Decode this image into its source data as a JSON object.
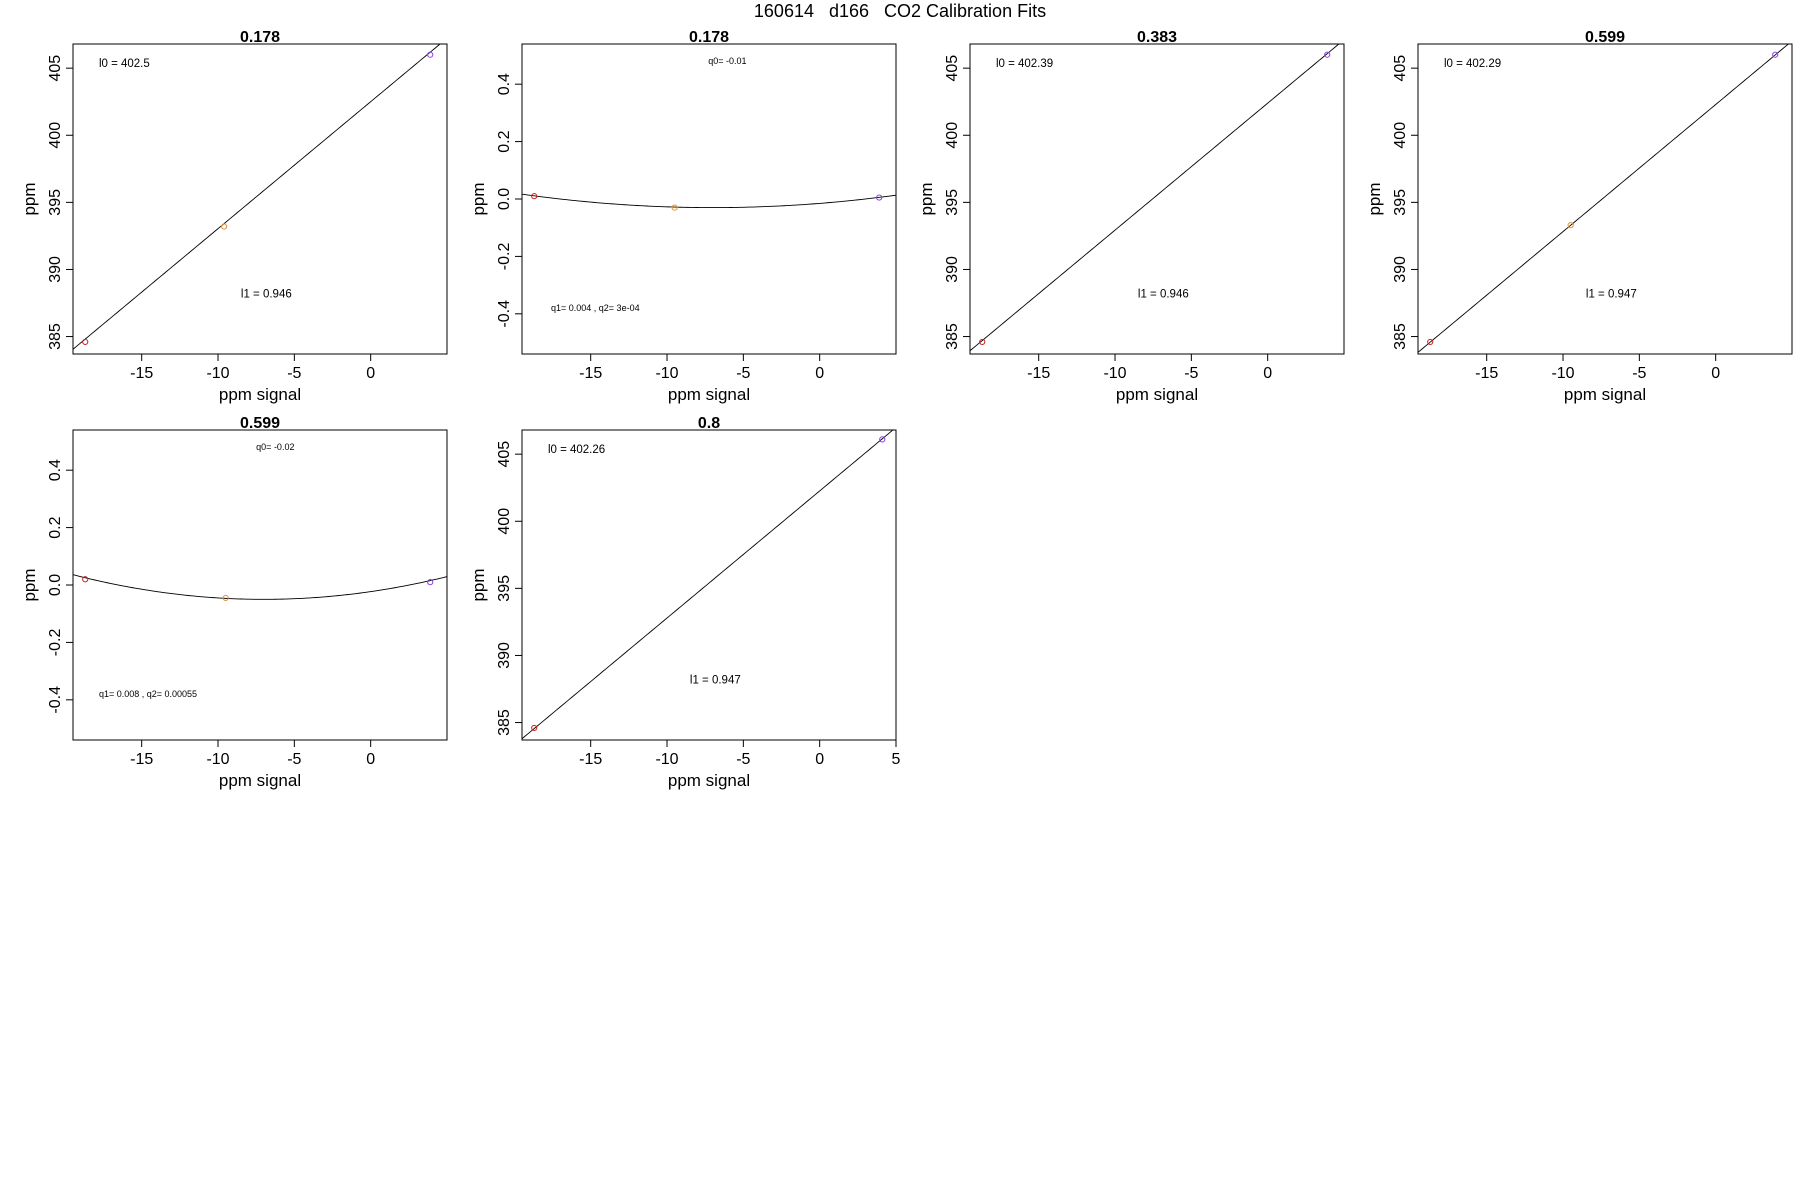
{
  "page_title": "160614   d166   CO2 Calibration Fits",
  "colors": {
    "axis": "#000000",
    "fit_line": "#000000"
  },
  "chart_data": [
    {
      "type": "scatter",
      "title": "0.178",
      "xlabel": "ppm signal",
      "ylabel": "ppm",
      "xlim": [
        -19.5,
        5.0
      ],
      "ylim": [
        383.7,
        406.8
      ],
      "xticks": [
        -15,
        -10,
        -5,
        0
      ],
      "yticks": [
        385,
        390,
        395,
        400,
        405
      ],
      "yticklabels": [
        "385",
        "390",
        "395",
        "400",
        "405"
      ],
      "points": [
        {
          "x": -18.7,
          "y": 384.6,
          "color": "#cc2222"
        },
        {
          "x": -9.6,
          "y": 393.2,
          "color": "#e89030"
        },
        {
          "x": 3.9,
          "y": 406.0,
          "color": "#8844dd"
        }
      ],
      "fit": {
        "kind": "linear",
        "intercept": 402.5,
        "slope": 0.946
      },
      "annotations": [
        {
          "text": "l0 =  402.5",
          "x": -17.8,
          "y": 405.1,
          "size": "small"
        },
        {
          "text": "l1 =  0.946",
          "x": -8.5,
          "y": 387.9,
          "size": "small"
        }
      ]
    },
    {
      "type": "scatter",
      "title": "0.178",
      "xlabel": "ppm signal",
      "ylabel": "ppm",
      "xlim": [
        -19.5,
        5.0
      ],
      "ylim": [
        -0.54,
        0.54
      ],
      "xticks": [
        -15,
        -10,
        -5,
        0
      ],
      "yticks": [
        -0.4,
        -0.2,
        0.0,
        0.2,
        0.4
      ],
      "yticklabels": [
        "-0.4",
        "-0.2",
        "0.0",
        "0.2",
        "0.4"
      ],
      "points": [
        {
          "x": -18.7,
          "y": 0.01,
          "color": "#cc2222"
        },
        {
          "x": -9.5,
          "y": -0.03,
          "color": "#e89030"
        },
        {
          "x": 3.9,
          "y": 0.005,
          "color": "#8844dd"
        }
      ],
      "fit": {
        "kind": "quadratic",
        "q0": -0.01,
        "q1": 0.004,
        "q2": 0.0003
      },
      "annotations": [
        {
          "text": "q0= -0.01",
          "x": -7.3,
          "y": 0.47,
          "size": "tiny"
        },
        {
          "text": "q1= 0.004 , q2= 3e-04",
          "x": -17.6,
          "y": -0.39,
          "size": "tiny"
        }
      ]
    },
    {
      "type": "scatter",
      "title": "0.383",
      "xlabel": "ppm signal",
      "ylabel": "ppm",
      "xlim": [
        -19.5,
        5.0
      ],
      "ylim": [
        383.7,
        406.8
      ],
      "xticks": [
        -15,
        -10,
        -5,
        0
      ],
      "yticks": [
        385,
        390,
        395,
        400,
        405
      ],
      "yticklabels": [
        "385",
        "390",
        "395",
        "400",
        "405"
      ],
      "points": [
        {
          "x": -18.7,
          "y": 384.6,
          "color": "#cc2222"
        },
        {
          "x": 3.9,
          "y": 406.0,
          "color": "#8844dd"
        }
      ],
      "fit": {
        "kind": "linear",
        "intercept": 402.39,
        "slope": 0.946
      },
      "annotations": [
        {
          "text": "l0 =  402.39",
          "x": -17.8,
          "y": 405.1,
          "size": "small"
        },
        {
          "text": "l1 =  0.946",
          "x": -8.5,
          "y": 387.9,
          "size": "small"
        }
      ]
    },
    {
      "type": "scatter",
      "title": "0.599",
      "xlabel": "ppm signal",
      "ylabel": "ppm",
      "xlim": [
        -19.5,
        5.0
      ],
      "ylim": [
        383.7,
        406.8
      ],
      "xticks": [
        -15,
        -10,
        -5,
        0
      ],
      "yticks": [
        385,
        390,
        395,
        400,
        405
      ],
      "yticklabels": [
        "385",
        "390",
        "395",
        "400",
        "405"
      ],
      "points": [
        {
          "x": -18.7,
          "y": 384.6,
          "color": "#cc2222"
        },
        {
          "x": -9.5,
          "y": 393.3,
          "color": "#e89030"
        },
        {
          "x": 3.9,
          "y": 406.0,
          "color": "#8844dd"
        }
      ],
      "fit": {
        "kind": "linear",
        "intercept": 402.29,
        "slope": 0.947
      },
      "annotations": [
        {
          "text": "l0 =  402.29",
          "x": -17.8,
          "y": 405.1,
          "size": "small"
        },
        {
          "text": "l1 =  0.947",
          "x": -8.5,
          "y": 387.9,
          "size": "small"
        }
      ]
    },
    {
      "type": "scatter",
      "title": "0.599",
      "xlabel": "ppm signal",
      "ylabel": "ppm",
      "xlim": [
        -19.5,
        5.0
      ],
      "ylim": [
        -0.54,
        0.54
      ],
      "xticks": [
        -15,
        -10,
        -5,
        0
      ],
      "yticks": [
        -0.4,
        -0.2,
        0.0,
        0.2,
        0.4
      ],
      "yticklabels": [
        "-0.4",
        "-0.2",
        "0.0",
        "0.2",
        "0.4"
      ],
      "points": [
        {
          "x": -18.7,
          "y": 0.02,
          "color": "#cc2222"
        },
        {
          "x": -9.5,
          "y": -0.045,
          "color": "#e89030"
        },
        {
          "x": 3.9,
          "y": 0.01,
          "color": "#8844dd"
        }
      ],
      "fit": {
        "kind": "quadratic",
        "q0": -0.02,
        "q1": 0.008,
        "q2": 0.00055
      },
      "annotations": [
        {
          "text": "q0= -0.02",
          "x": -7.5,
          "y": 0.47,
          "size": "tiny"
        },
        {
          "text": "q1= 0.008 , q2= 0.00055",
          "x": -17.8,
          "y": -0.39,
          "size": "tiny"
        }
      ]
    },
    {
      "type": "scatter",
      "title": "0.8",
      "xlabel": "ppm signal",
      "ylabel": "ppm",
      "xlim": [
        -19.5,
        5.0
      ],
      "ylim": [
        383.7,
        406.8
      ],
      "xticks": [
        -15,
        -10,
        -5,
        0,
        5
      ],
      "yticks": [
        385,
        390,
        395,
        400,
        405
      ],
      "yticklabels": [
        "385",
        "390",
        "395",
        "400",
        "405"
      ],
      "points": [
        {
          "x": -18.7,
          "y": 384.6,
          "color": "#cc2222"
        },
        {
          "x": 4.1,
          "y": 406.1,
          "color": "#8844dd"
        }
      ],
      "fit": {
        "kind": "linear",
        "intercept": 402.26,
        "slope": 0.947
      },
      "annotations": [
        {
          "text": "l0 =  402.26",
          "x": -17.8,
          "y": 405.1,
          "size": "small"
        },
        {
          "text": "l1 =  0.947",
          "x": -8.5,
          "y": 387.9,
          "size": "small"
        }
      ]
    }
  ]
}
